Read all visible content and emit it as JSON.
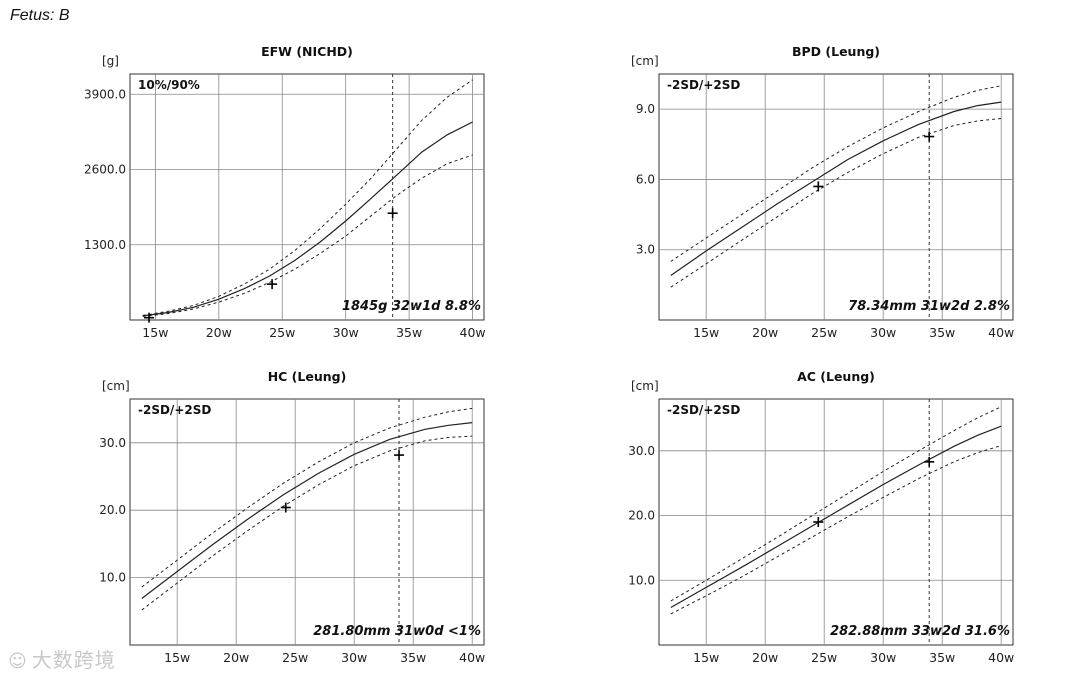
{
  "page_title": "Fetus: B",
  "watermark": "大数跨境",
  "colors": {
    "line": "#222222",
    "grid": "#888888",
    "axis_bg": "#ffffff"
  },
  "chart_data": [
    {
      "type": "line",
      "title": "EFW (NICHD)",
      "unit": "[g]",
      "legend": "10%/90%",
      "summary": "1845g 32w1d 8.8%",
      "x_ticks": [
        {
          "v": 15,
          "label": "15w"
        },
        {
          "v": 20,
          "label": "20w"
        },
        {
          "v": 25,
          "label": "25w"
        },
        {
          "v": 30,
          "label": "30w"
        },
        {
          "v": 35,
          "label": "35w"
        },
        {
          "v": 40,
          "label": "40w"
        }
      ],
      "y_ticks": [
        {
          "v": 1300,
          "label": "1300.0"
        },
        {
          "v": 2600,
          "label": "2600.0"
        },
        {
          "v": 3900,
          "label": "3900.0"
        }
      ],
      "xlim": [
        13,
        40.9
      ],
      "ylim": [
        0,
        4250
      ],
      "current_ga": 33.7,
      "x": [
        14,
        16,
        18,
        20,
        22,
        24,
        26,
        28,
        30,
        32,
        34,
        36,
        38,
        40
      ],
      "series": [
        {
          "name": "10%",
          "values": [
            60,
            110,
            190,
            310,
            460,
            650,
            880,
            1150,
            1450,
            1800,
            2150,
            2450,
            2700,
            2850
          ]
        },
        {
          "name": "50%",
          "values": [
            70,
            130,
            220,
            360,
            540,
            760,
            1030,
            1350,
            1710,
            2100,
            2500,
            2900,
            3200,
            3420
          ]
        },
        {
          "name": "90%",
          "values": [
            80,
            150,
            250,
            410,
            620,
            880,
            1200,
            1580,
            2000,
            2450,
            2950,
            3450,
            3850,
            4150
          ]
        }
      ],
      "points": [
        {
          "x": 14.5,
          "y": 40
        },
        {
          "x": 24.2,
          "y": 620
        },
        {
          "x": 33.7,
          "y": 1845
        }
      ]
    },
    {
      "type": "line",
      "title": "BPD (Leung)",
      "unit": "[cm]",
      "legend": "-2SD/+2SD",
      "summary": "78.34mm 31w2d 2.8%",
      "x_ticks": [
        {
          "v": 15,
          "label": "15w"
        },
        {
          "v": 20,
          "label": "20w"
        },
        {
          "v": 25,
          "label": "25w"
        },
        {
          "v": 30,
          "label": "30w"
        },
        {
          "v": 35,
          "label": "35w"
        },
        {
          "v": 40,
          "label": "40w"
        }
      ],
      "y_ticks": [
        {
          "v": 3,
          "label": "3.0"
        },
        {
          "v": 6,
          "label": "6.0"
        },
        {
          "v": 9,
          "label": "9.0"
        }
      ],
      "xlim": [
        11,
        41
      ],
      "ylim": [
        0,
        10.5
      ],
      "current_ga": 33.9,
      "x": [
        12,
        15,
        18,
        21,
        24,
        27,
        30,
        33,
        36,
        38,
        40
      ],
      "series": [
        {
          "name": "-2SD",
          "values": [
            1.4,
            2.4,
            3.4,
            4.4,
            5.4,
            6.3,
            7.1,
            7.8,
            8.3,
            8.5,
            8.6
          ]
        },
        {
          "name": "Mean",
          "values": [
            1.9,
            2.95,
            3.95,
            4.95,
            5.9,
            6.85,
            7.65,
            8.35,
            8.9,
            9.15,
            9.3
          ]
        },
        {
          "name": "+2SD",
          "values": [
            2.5,
            3.5,
            4.5,
            5.5,
            6.5,
            7.4,
            8.2,
            8.9,
            9.5,
            9.8,
            10.0
          ]
        }
      ],
      "points": [
        {
          "x": 24.5,
          "y": 5.7
        },
        {
          "x": 33.9,
          "y": 7.83
        }
      ]
    },
    {
      "type": "line",
      "title": "HC (Leung)",
      "unit": "[cm]",
      "legend": "-2SD/+2SD",
      "summary": "281.80mm 31w0d <1%",
      "x_ticks": [
        {
          "v": 15,
          "label": "15w"
        },
        {
          "v": 20,
          "label": "20w"
        },
        {
          "v": 25,
          "label": "25w"
        },
        {
          "v": 30,
          "label": "30w"
        },
        {
          "v": 35,
          "label": "35w"
        },
        {
          "v": 40,
          "label": "40w"
        }
      ],
      "y_ticks": [
        {
          "v": 10,
          "label": "10.0"
        },
        {
          "v": 20,
          "label": "20.0"
        },
        {
          "v": 30,
          "label": "30.0"
        }
      ],
      "xlim": [
        11,
        41
      ],
      "ylim": [
        0,
        36.5
      ],
      "current_ga": 33.8,
      "x": [
        12,
        15,
        18,
        21,
        24,
        27,
        30,
        33,
        36,
        38,
        40
      ],
      "series": [
        {
          "name": "-2SD",
          "values": [
            5.2,
            9.2,
            13.2,
            17.0,
            20.6,
            23.8,
            26.6,
            28.8,
            30.3,
            30.8,
            31.0
          ]
        },
        {
          "name": "Mean",
          "values": [
            6.9,
            10.9,
            14.9,
            18.7,
            22.3,
            25.5,
            28.3,
            30.5,
            32.0,
            32.6,
            33.0
          ]
        },
        {
          "name": "+2SD",
          "values": [
            8.6,
            12.6,
            16.6,
            20.4,
            24.0,
            27.2,
            30.0,
            32.2,
            33.8,
            34.6,
            35.1
          ]
        }
      ],
      "points": [
        {
          "x": 24.2,
          "y": 20.4
        },
        {
          "x": 33.8,
          "y": 28.18
        }
      ]
    },
    {
      "type": "line",
      "title": "AC (Leung)",
      "unit": "[cm]",
      "legend": "-2SD/+2SD",
      "summary": "282.88mm 33w2d 31.6%",
      "x_ticks": [
        {
          "v": 15,
          "label": "15w"
        },
        {
          "v": 20,
          "label": "20w"
        },
        {
          "v": 25,
          "label": "25w"
        },
        {
          "v": 30,
          "label": "30w"
        },
        {
          "v": 35,
          "label": "35w"
        },
        {
          "v": 40,
          "label": "40w"
        }
      ],
      "y_ticks": [
        {
          "v": 10,
          "label": "10.0"
        },
        {
          "v": 20,
          "label": "20.0"
        },
        {
          "v": 30,
          "label": "30.0"
        }
      ],
      "xlim": [
        11,
        41
      ],
      "ylim": [
        0,
        38
      ],
      "current_ga": 33.9,
      "x": [
        12,
        15,
        18,
        21,
        24,
        27,
        30,
        33,
        36,
        38,
        40
      ],
      "series": [
        {
          "name": "-2SD",
          "values": [
            4.8,
            7.6,
            10.5,
            13.6,
            16.7,
            19.8,
            22.8,
            25.7,
            28.3,
            29.7,
            30.8
          ]
        },
        {
          "name": "Mean",
          "values": [
            5.8,
            8.9,
            12.0,
            15.2,
            18.4,
            21.6,
            24.8,
            27.8,
            30.7,
            32.4,
            33.8
          ]
        },
        {
          "name": "+2SD",
          "values": [
            6.8,
            10.0,
            13.3,
            16.6,
            20.0,
            23.4,
            26.8,
            30.0,
            33.1,
            35.1,
            36.8
          ]
        }
      ],
      "points": [
        {
          "x": 24.5,
          "y": 19.0
        },
        {
          "x": 33.9,
          "y": 28.29
        }
      ]
    }
  ]
}
